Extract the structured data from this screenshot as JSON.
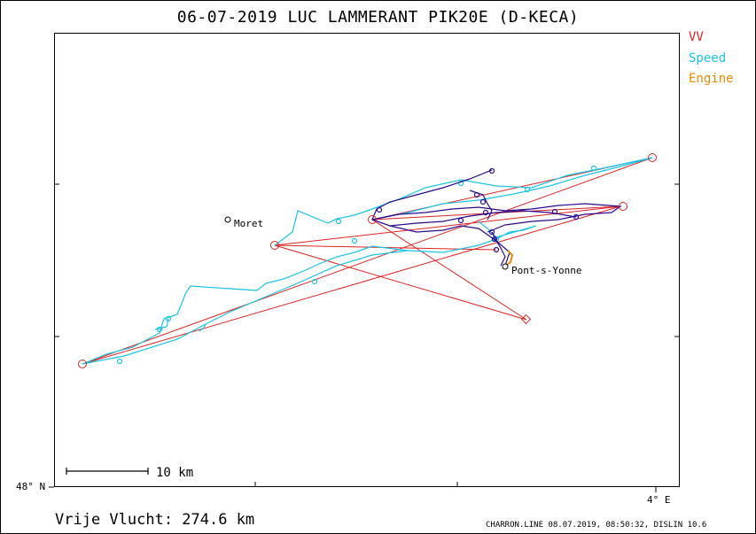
{
  "title": "06-07-2019   LUC LAMMERANT   PIK20E (D-KECA)",
  "legend": {
    "vv": {
      "label": "VV",
      "color": "#dd2222"
    },
    "speed": {
      "label": "Speed",
      "color": "#19c4e6"
    },
    "engine": {
      "label": "Engine",
      "color": "#e88a00"
    }
  },
  "track_colors": {
    "fast": "#19c4e6",
    "slow": "#2a0a8c",
    "engine": "#e88a00",
    "vv": "#dd2222"
  },
  "axis": {
    "lat_label": "48° N",
    "lon_label": "4° E"
  },
  "scale": {
    "label": "10 km"
  },
  "places": [
    {
      "name": "Moret"
    },
    {
      "name": "Pont-s-Yonne"
    }
  ],
  "distance": "Vrije Vlucht:  274.6 km",
  "footer": "CHARRON.LINE 08.07.2019, 08:50:32, DISLIN 10.6"
}
